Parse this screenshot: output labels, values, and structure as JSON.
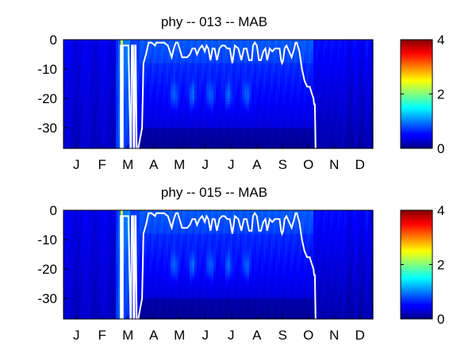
{
  "chart_data": [
    {
      "type": "heatmap",
      "title": "phy -- 013 -- MAB",
      "xticklabels": [
        "J",
        "F",
        "M",
        "A",
        "M",
        "J",
        "J",
        "A",
        "S",
        "O",
        "N",
        "D"
      ],
      "yticks": [
        0,
        -10,
        -20,
        -30
      ],
      "ylim": [
        -37,
        0
      ],
      "xlim_months": [
        0,
        12
      ],
      "colorbar": {
        "range": [
          0,
          4
        ],
        "ticks": [
          0,
          2,
          4
        ],
        "colormap": "jet"
      },
      "mixed_layer_line": {
        "month": [
          0.0,
          2.22,
          2.22,
          2.26,
          2.26,
          2.3,
          2.3,
          2.34,
          2.42,
          2.48,
          2.52,
          2.6,
          2.62,
          2.65,
          2.7,
          2.72,
          2.75,
          2.78,
          2.8,
          2.84,
          2.9,
          3.05,
          3.1,
          3.2,
          3.3,
          3.42,
          3.55,
          3.6,
          3.75,
          3.9,
          4.05,
          4.2,
          4.28,
          4.36,
          4.43,
          4.5,
          4.6,
          4.7,
          4.8,
          4.9,
          5.0,
          5.1,
          5.18,
          5.28,
          5.38,
          5.48,
          5.55,
          5.62,
          5.7,
          5.78,
          5.86,
          5.95,
          6.05,
          6.15,
          6.25,
          6.35,
          6.45,
          6.55,
          6.65,
          6.78,
          6.9,
          7.0,
          7.1,
          7.2,
          7.3,
          7.35,
          7.42,
          7.5,
          7.58,
          7.66,
          7.75,
          7.83,
          7.9,
          8.0,
          8.1,
          8.2,
          8.3,
          8.38,
          8.44,
          8.48,
          8.52,
          8.58,
          8.65,
          8.75,
          8.85,
          8.95,
          9.0,
          9.05,
          9.15,
          9.25,
          9.35,
          9.45,
          9.55,
          9.62,
          9.7,
          9.72,
          9.75,
          9.78
        ],
        "depth": [
          null,
          -37,
          -2,
          -2,
          -37,
          -37,
          -2,
          -2,
          -2,
          -2,
          -2,
          -37,
          -37,
          -2,
          -2,
          -37,
          -37,
          -2,
          -2,
          -37,
          -37,
          -30,
          -8,
          -5,
          -1,
          -1,
          -2,
          -1,
          -1,
          -1,
          -2,
          -6,
          -3,
          -1,
          -1,
          -3,
          -6,
          -6,
          -6,
          -5,
          -3,
          -3,
          -5,
          -3,
          -2,
          -4,
          -2,
          -3,
          -7,
          -3,
          -3,
          -7,
          -3,
          -2,
          -2,
          -3,
          -3,
          -8,
          -2,
          -3,
          -7,
          -3,
          -3,
          -7,
          -7,
          -2,
          -1,
          -2,
          -7,
          -7,
          -4,
          -3,
          -7,
          -3,
          -4,
          -3,
          -3,
          -3,
          -7,
          -8,
          -7,
          -3,
          -2,
          -4,
          -6,
          -3,
          -1,
          -1,
          -4,
          -10,
          -14,
          -16,
          -16,
          -18,
          -20,
          -22,
          -22,
          -37
        ]
      }
    },
    {
      "type": "heatmap",
      "title": "phy -- 015 -- MAB",
      "xticklabels": [
        "J",
        "F",
        "M",
        "A",
        "M",
        "J",
        "J",
        "A",
        "S",
        "O",
        "N",
        "D"
      ],
      "yticks": [
        0,
        -10,
        -20,
        -30
      ],
      "ylim": [
        -37,
        0
      ],
      "xlim_months": [
        0,
        12
      ],
      "colorbar": {
        "range": [
          0,
          4
        ],
        "ticks": [
          0,
          2,
          4
        ],
        "colormap": "jet"
      },
      "mixed_layer_line": {
        "month": [
          0.0,
          2.22,
          2.22,
          2.26,
          2.26,
          2.3,
          2.3,
          2.34,
          2.42,
          2.48,
          2.52,
          2.6,
          2.62,
          2.65,
          2.7,
          2.72,
          2.75,
          2.78,
          2.8,
          2.84,
          2.9,
          3.05,
          3.1,
          3.2,
          3.3,
          3.42,
          3.55,
          3.6,
          3.75,
          3.9,
          4.05,
          4.2,
          4.28,
          4.36,
          4.43,
          4.5,
          4.6,
          4.7,
          4.8,
          4.9,
          5.0,
          5.1,
          5.18,
          5.28,
          5.38,
          5.48,
          5.55,
          5.62,
          5.7,
          5.78,
          5.86,
          5.95,
          6.05,
          6.15,
          6.25,
          6.35,
          6.45,
          6.55,
          6.65,
          6.78,
          6.9,
          7.0,
          7.1,
          7.2,
          7.3,
          7.35,
          7.42,
          7.5,
          7.58,
          7.66,
          7.75,
          7.83,
          7.9,
          8.0,
          8.1,
          8.2,
          8.3,
          8.38,
          8.44,
          8.48,
          8.52,
          8.58,
          8.65,
          8.75,
          8.85,
          8.95,
          9.0,
          9.05,
          9.15,
          9.25,
          9.35,
          9.45,
          9.55,
          9.62,
          9.7,
          9.72,
          9.75,
          9.78
        ],
        "depth": [
          null,
          -37,
          -2,
          -2,
          -37,
          -37,
          -2,
          -2,
          -2,
          -2,
          -2,
          -37,
          -37,
          -2,
          -2,
          -37,
          -37,
          -2,
          -2,
          -37,
          -37,
          -30,
          -8,
          -5,
          -1,
          -1,
          -2,
          -1,
          -1,
          -1,
          -2,
          -6,
          -3,
          -1,
          -1,
          -3,
          -6,
          -6,
          -6,
          -5,
          -3,
          -3,
          -5,
          -3,
          -2,
          -4,
          -2,
          -3,
          -7,
          -3,
          -3,
          -7,
          -3,
          -2,
          -2,
          -3,
          -3,
          -8,
          -2,
          -3,
          -7,
          -3,
          -3,
          -7,
          -7,
          -2,
          -1,
          -2,
          -7,
          -7,
          -4,
          -3,
          -7,
          -3,
          -4,
          -3,
          -3,
          -3,
          -7,
          -8,
          -7,
          -3,
          -2,
          -4,
          -6,
          -3,
          -1,
          -1,
          -4,
          -10,
          -14,
          -16,
          -16,
          -18,
          -20,
          -22,
          -22,
          -37
        ]
      }
    }
  ]
}
